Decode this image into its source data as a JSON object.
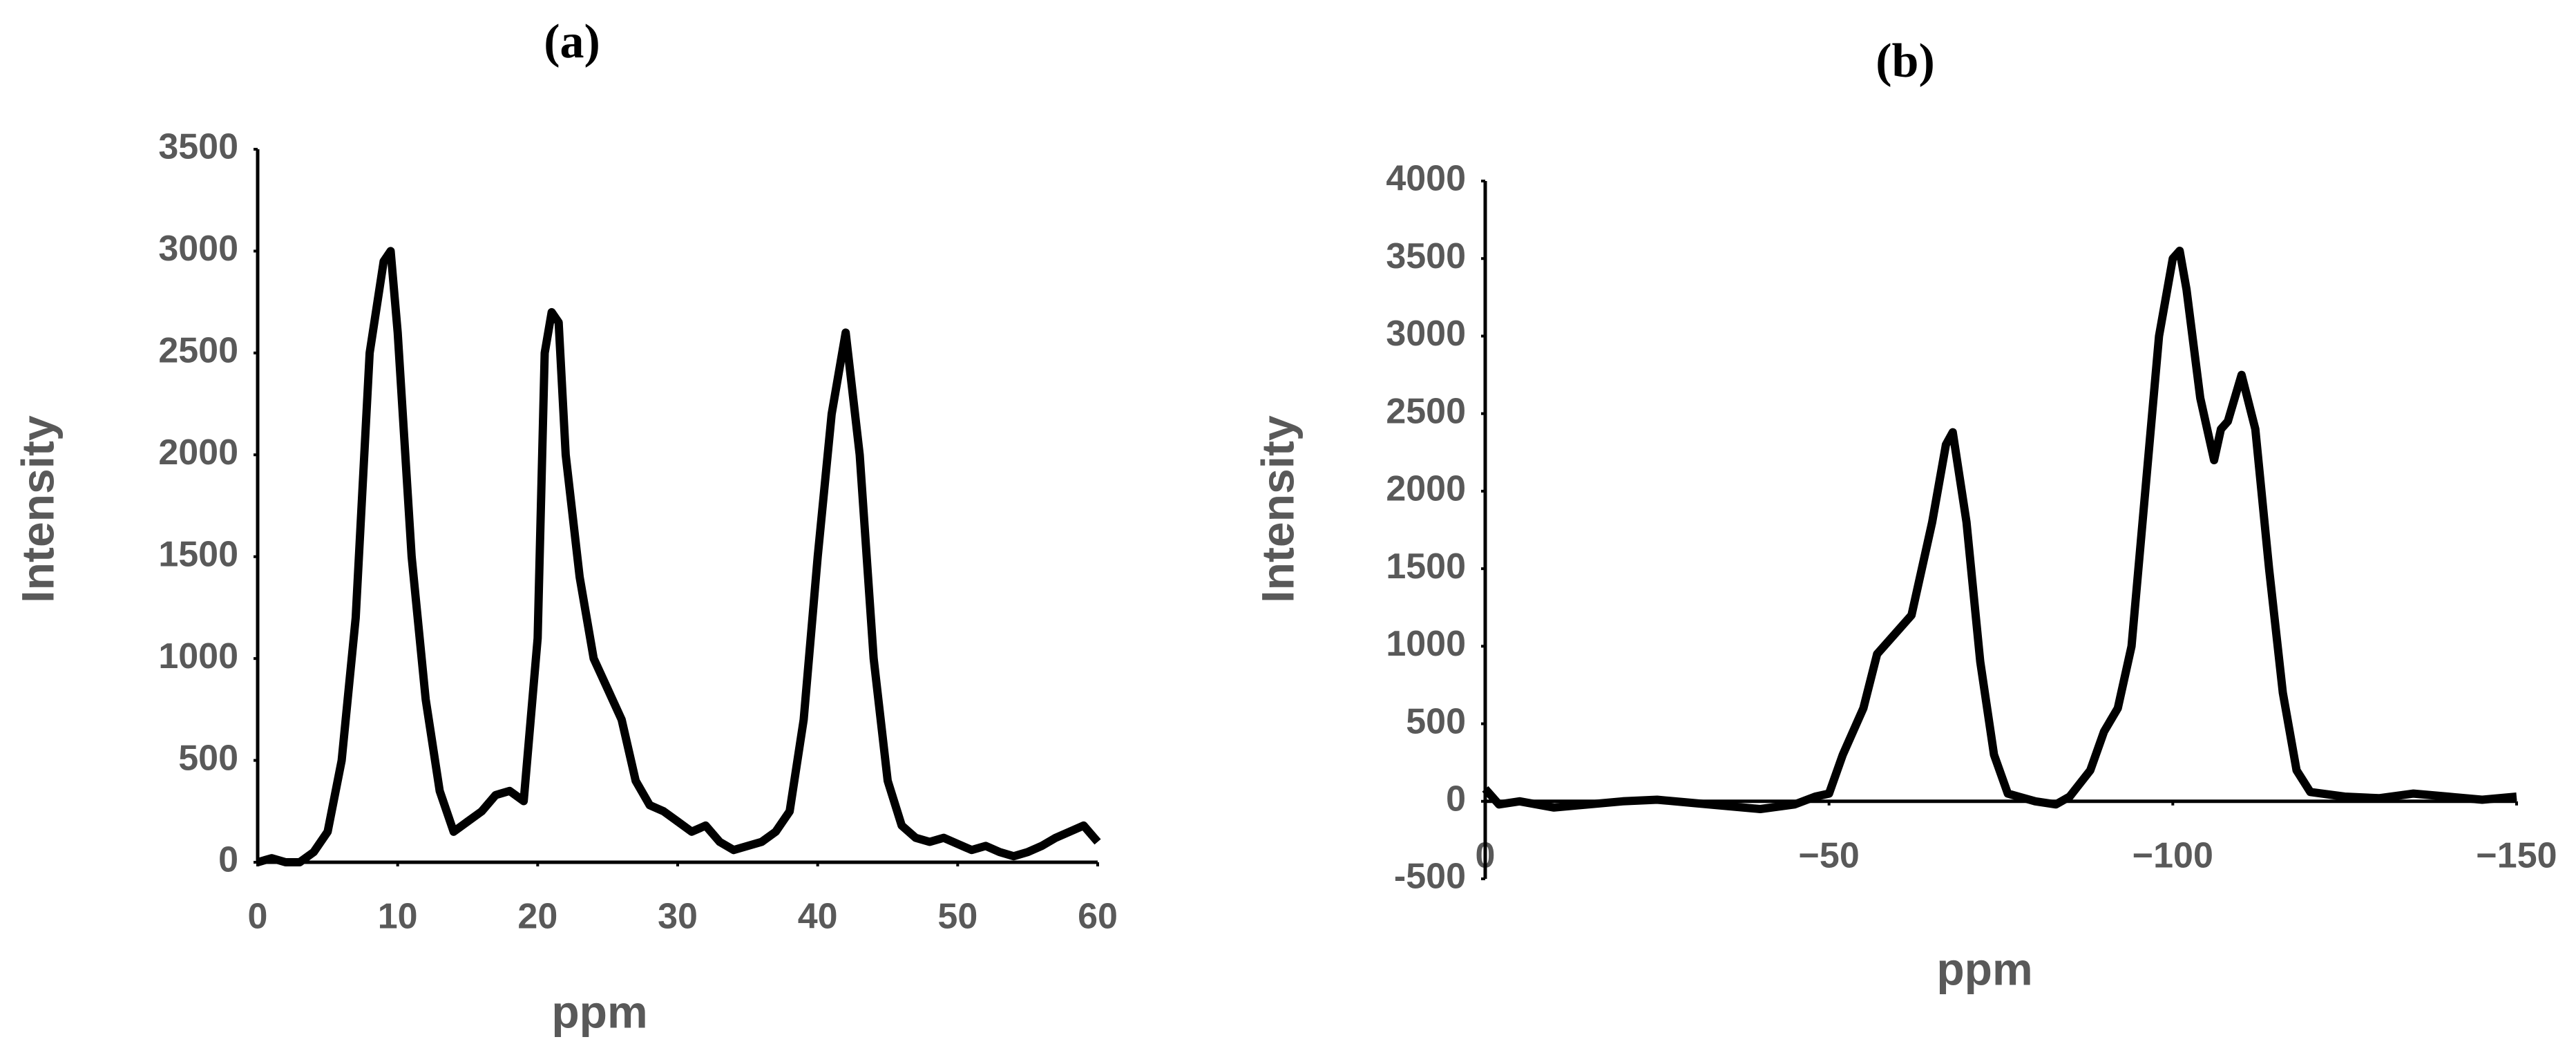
{
  "chart_data": [
    {
      "type": "line",
      "title": "(a)",
      "xlabel": "ppm",
      "ylabel": "Intensity",
      "x": [
        0,
        1,
        2,
        3,
        4,
        5,
        6,
        7,
        8,
        9,
        9.5,
        10,
        11,
        12,
        13,
        14,
        15,
        16,
        17,
        18,
        19,
        20,
        20.5,
        21,
        21.5,
        22,
        23,
        24,
        25,
        26,
        27,
        28,
        29,
        30,
        31,
        32,
        33,
        34,
        35,
        36,
        37,
        38,
        39,
        40,
        41,
        42,
        43,
        44,
        45,
        46,
        47,
        48,
        49,
        50,
        51,
        52,
        53,
        54,
        55,
        56,
        57,
        58,
        59,
        60
      ],
      "series": [
        {
          "color": "#000000",
          "values": [
            0,
            20,
            0,
            0,
            50,
            150,
            500,
            1200,
            2500,
            2950,
            3000,
            2600,
            1500,
            800,
            350,
            150,
            200,
            250,
            330,
            350,
            300,
            1100,
            2500,
            2700,
            2650,
            2000,
            1400,
            1000,
            850,
            700,
            400,
            280,
            250,
            200,
            150,
            180,
            100,
            60,
            80,
            100,
            150,
            250,
            700,
            1500,
            2200,
            2600,
            2000,
            1000,
            400,
            180,
            120,
            100,
            120,
            90,
            60,
            80,
            50,
            30,
            50,
            80,
            120,
            150,
            180,
            100
          ]
        }
      ],
      "xlim": [
        0,
        60
      ],
      "xticks": [
        0,
        10,
        20,
        30,
        40,
        50,
        60
      ],
      "ylim": [
        0,
        3500
      ],
      "yticks": [
        0,
        500,
        1000,
        1500,
        2000,
        2500,
        3000,
        3500
      ]
    },
    {
      "type": "line",
      "title": "(b)",
      "xlabel": "ppm",
      "ylabel": "Intensity",
      "x": [
        0,
        -2,
        -5,
        -10,
        -15,
        -20,
        -25,
        -30,
        -35,
        -40,
        -45,
        -48,
        -50,
        -52,
        -55,
        -57,
        -60,
        -62,
        -65,
        -67,
        -68,
        -70,
        -72,
        -74,
        -76,
        -80,
        -83,
        -85,
        -88,
        -90,
        -92,
        -94,
        -96,
        -98,
        -100,
        -101,
        -102,
        -104,
        -106,
        -107,
        -108,
        -110,
        -112,
        -114,
        -116,
        -118,
        -120,
        -125,
        -130,
        -135,
        -140,
        -145,
        -150
      ],
      "series": [
        {
          "color": "#000000",
          "values": [
            80,
            -20,
            0,
            -40,
            -20,
            0,
            10,
            -10,
            -30,
            -50,
            -20,
            30,
            50,
            300,
            600,
            950,
            1100,
            1200,
            1800,
            2300,
            2380,
            1800,
            900,
            300,
            50,
            0,
            -20,
            30,
            200,
            450,
            600,
            1000,
            2000,
            3000,
            3500,
            3550,
            3300,
            2600,
            2200,
            2400,
            2450,
            2750,
            2400,
            1500,
            700,
            200,
            60,
            30,
            20,
            50,
            30,
            10,
            30
          ]
        }
      ],
      "xlim": [
        0,
        -150
      ],
      "xticks": [
        0,
        {
          "value": -50,
          "label": "−50"
        },
        {
          "value": -100,
          "label": "−100"
        },
        {
          "value": -150,
          "label": "−150"
        }
      ],
      "ylim": [
        -500,
        4000
      ],
      "yticks": [
        -500,
        0,
        500,
        1000,
        1500,
        2000,
        2500,
        3000,
        3500,
        4000
      ]
    }
  ]
}
